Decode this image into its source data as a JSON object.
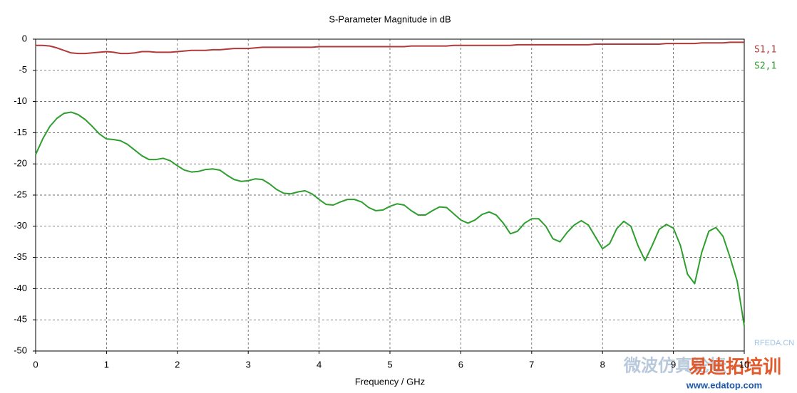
{
  "chart_data": {
    "type": "line",
    "title": "S-Parameter Magnitude in dB",
    "x_label": "Frequency / GHz",
    "x": [
      0,
      0.1,
      0.2,
      0.3,
      0.4,
      0.5,
      0.6,
      0.7,
      0.8,
      0.9,
      1,
      1.1,
      1.2,
      1.3,
      1.4,
      1.5,
      1.6,
      1.7,
      1.8,
      1.9,
      2,
      2.1,
      2.2,
      2.3,
      2.4,
      2.5,
      2.6,
      2.7,
      2.8,
      2.9,
      3,
      3.1,
      3.2,
      3.3,
      3.4,
      3.5,
      3.6,
      3.7,
      3.8,
      3.9,
      4,
      4.1,
      4.2,
      4.3,
      4.4,
      4.5,
      4.6,
      4.7,
      4.8,
      4.9,
      5,
      5.1,
      5.2,
      5.3,
      5.4,
      5.5,
      5.6,
      5.7,
      5.8,
      5.9,
      6,
      6.1,
      6.2,
      6.3,
      6.4,
      6.5,
      6.6,
      6.7,
      6.8,
      6.9,
      7,
      7.1,
      7.2,
      7.3,
      7.4,
      7.5,
      7.6,
      7.7,
      7.8,
      7.9,
      8,
      8.1,
      8.2,
      8.3,
      8.4,
      8.5,
      8.6,
      8.7,
      8.8,
      8.9,
      9,
      9.1,
      9.2,
      9.3,
      9.4,
      9.5,
      9.6,
      9.7,
      9.8,
      9.9,
      10
    ],
    "series": [
      {
        "name": "S1,1",
        "color": "#b03a3a",
        "values": [
          -1.0,
          -1.0,
          -1.1,
          -1.4,
          -1.8,
          -2.2,
          -2.3,
          -2.3,
          -2.2,
          -2.1,
          -2.0,
          -2.1,
          -2.3,
          -2.3,
          -2.2,
          -2.0,
          -2.0,
          -2.1,
          -2.1,
          -2.1,
          -2.0,
          -1.9,
          -1.8,
          -1.8,
          -1.8,
          -1.7,
          -1.7,
          -1.6,
          -1.5,
          -1.5,
          -1.5,
          -1.4,
          -1.3,
          -1.3,
          -1.3,
          -1.3,
          -1.3,
          -1.3,
          -1.3,
          -1.3,
          -1.2,
          -1.2,
          -1.2,
          -1.2,
          -1.2,
          -1.2,
          -1.2,
          -1.2,
          -1.2,
          -1.2,
          -1.2,
          -1.2,
          -1.2,
          -1.1,
          -1.1,
          -1.1,
          -1.1,
          -1.1,
          -1.1,
          -1.0,
          -1.0,
          -1.0,
          -1.0,
          -1.0,
          -1.0,
          -1.0,
          -1.0,
          -1.0,
          -0.9,
          -0.9,
          -0.9,
          -0.9,
          -0.9,
          -0.9,
          -0.9,
          -0.9,
          -0.9,
          -0.9,
          -0.9,
          -0.8,
          -0.8,
          -0.8,
          -0.8,
          -0.8,
          -0.8,
          -0.8,
          -0.8,
          -0.8,
          -0.8,
          -0.7,
          -0.7,
          -0.7,
          -0.7,
          -0.7,
          -0.6,
          -0.6,
          -0.6,
          -0.6,
          -0.5,
          -0.5,
          -0.5
        ]
      },
      {
        "name": "S2,1",
        "color": "#2e9e2e",
        "values": [
          -18.5,
          -16,
          -14,
          -12.7,
          -11.9,
          -11.7,
          -12.1,
          -12.9,
          -14,
          -15.2,
          -16,
          -16.1,
          -16.3,
          -16.9,
          -17.8,
          -18.7,
          -19.3,
          -19.3,
          -19.1,
          -19.5,
          -20.3,
          -21,
          -21.3,
          -21.2,
          -20.9,
          -20.8,
          -21,
          -21.8,
          -22.5,
          -22.8,
          -22.7,
          -22.4,
          -22.5,
          -23.2,
          -24.1,
          -24.7,
          -24.8,
          -24.5,
          -24.3,
          -24.8,
          -25.7,
          -26.5,
          -26.6,
          -26.1,
          -25.7,
          -25.7,
          -26.1,
          -27,
          -27.5,
          -27.4,
          -26.8,
          -26.4,
          -26.6,
          -27.5,
          -28.2,
          -28.2,
          -27.5,
          -26.9,
          -27,
          -28,
          -29,
          -29.5,
          -29,
          -28.1,
          -27.7,
          -28.2,
          -29.5,
          -31.2,
          -30.8,
          -29.5,
          -28.8,
          -28.8,
          -30,
          -32,
          -32.5,
          -31,
          -29.8,
          -29.1,
          -29.8,
          -31.7,
          -33.6,
          -32.8,
          -30.4,
          -29.2,
          -30,
          -33.1,
          -35.5,
          -33.1,
          -30.5,
          -29.7,
          -30.3,
          -33.1,
          -37.7,
          -39.2,
          -34.2,
          -30.8,
          -30.2,
          -31.6,
          -35,
          -38.8,
          -46
        ]
      }
    ],
    "xlim": [
      0,
      10
    ],
    "xticks": [
      0,
      1,
      2,
      3,
      4,
      5,
      6,
      7,
      8,
      9,
      10
    ],
    "ylim": [
      -50,
      0
    ],
    "yticks": [
      0,
      -5,
      -10,
      -15,
      -20,
      -25,
      -30,
      -35,
      -40,
      -45,
      -50
    ],
    "grid": true,
    "legend": "right",
    "watermarks": [
      "RFEDA.CN",
      "微波仿真论坛",
      "易迪拓培训",
      "www.edatop.com"
    ]
  }
}
